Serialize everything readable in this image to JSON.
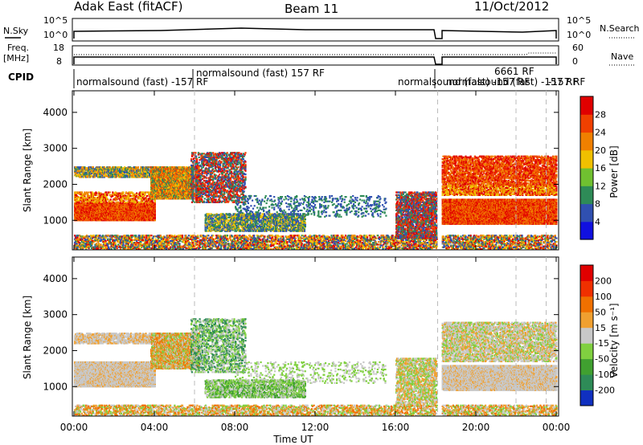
{
  "header": {
    "title_left": "Adak East (fitACF)",
    "title_center": "Beam 11",
    "title_right": "11/Oct/2012"
  },
  "top_panels": {
    "nsky_label": "N.Sky",
    "nsky_ticks": [
      "10^5",
      "10^0"
    ],
    "nsearch_label": "N.Search",
    "nsearch_ticks": [
      "10^5",
      "10^0"
    ],
    "freq_label_1": "Freq.",
    "freq_label_2": "[MHz]",
    "freq_ticks": [
      "18",
      "8"
    ],
    "nave_label": "Nave",
    "nave_ticks": [
      "60",
      "0"
    ],
    "cpid_label": "CPID",
    "cpid_labels": [
      "normalsound (fast) -157 RF",
      "normalsound (fast) 157 RF",
      "normalsound (fast) -157 RF",
      "6661 RF",
      "normalsound (fast) -157 RF",
      "-157 RF"
    ]
  },
  "chart_data": [
    {
      "type": "heatmap",
      "name": "power-panel",
      "ylabel": "Slant Range [km]",
      "yticks": [
        "1000",
        "2000",
        "3000",
        "4000"
      ],
      "ylim": [
        180,
        4600
      ],
      "x_range_hours": [
        0,
        24
      ],
      "colorbar_label": "Power [dB]",
      "colorbar_ticks": [
        "4",
        "8",
        "12",
        "16",
        "20",
        "24",
        "28"
      ],
      "colorbar_colors": [
        "#1010e0",
        "#3050b0",
        "#2e8b57",
        "#70c030",
        "#f0c000",
        "#f08000",
        "#f04000",
        "#e00000"
      ],
      "scatter_bands": [
        {
          "t0": 0.0,
          "t1": 4.0,
          "r0": 1000,
          "r1": 1500,
          "density": 0.92,
          "colors": [
            "#e00000",
            "#f04000",
            "#f08000"
          ]
        },
        {
          "t0": 0.0,
          "t1": 4.0,
          "r0": 2200,
          "r1": 2500,
          "density": 0.55,
          "colors": [
            "#f08000",
            "#2e8b57",
            "#3050b0",
            "#f0c000"
          ]
        },
        {
          "t0": 0.0,
          "t1": 4.0,
          "r0": 1500,
          "r1": 1800,
          "density": 0.35,
          "colors": [
            "#f08000",
            "#f0c000",
            "#e00000"
          ]
        },
        {
          "t0": 0.0,
          "t1": 24.0,
          "r0": 200,
          "r1": 600,
          "density": 0.35,
          "colors": [
            "#e00000",
            "#f08000",
            "#f0c000",
            "#2e8b57",
            "#3050b0"
          ]
        },
        {
          "t0": 3.8,
          "t1": 6.2,
          "r0": 1600,
          "r1": 2500,
          "density": 0.75,
          "colors": [
            "#f04000",
            "#f08000",
            "#f0c000",
            "#2e8b57"
          ]
        },
        {
          "t0": 5.8,
          "t1": 8.5,
          "r0": 1500,
          "r1": 2900,
          "density": 0.32,
          "colors": [
            "#3050b0",
            "#2e8b57",
            "#f04000",
            "#e00000"
          ]
        },
        {
          "t0": 6.5,
          "t1": 11.5,
          "r0": 700,
          "r1": 1200,
          "density": 0.45,
          "colors": [
            "#2e8b57",
            "#3050b0",
            "#f0c000"
          ]
        },
        {
          "t0": 8.0,
          "t1": 15.5,
          "r0": 1100,
          "r1": 1700,
          "density": 0.12,
          "colors": [
            "#3050b0",
            "#2e8b57"
          ]
        },
        {
          "t0": 16.0,
          "t1": 18.0,
          "r0": 500,
          "r1": 1800,
          "density": 0.45,
          "colors": [
            "#3050b0",
            "#f04000",
            "#e00000",
            "#2e8b57"
          ]
        },
        {
          "t0": 18.3,
          "t1": 24.0,
          "r0": 900,
          "r1": 1600,
          "density": 0.9,
          "colors": [
            "#e00000",
            "#f04000",
            "#f08000"
          ]
        },
        {
          "t0": 18.3,
          "t1": 24.0,
          "r0": 1700,
          "r1": 2000,
          "density": 0.45,
          "colors": [
            "#f08000",
            "#f0c000",
            "#e00000"
          ]
        },
        {
          "t0": 18.3,
          "t1": 24.0,
          "r0": 2000,
          "r1": 2800,
          "density": 0.45,
          "colors": [
            "#e00000",
            "#f04000",
            "#f08000"
          ]
        }
      ]
    },
    {
      "type": "heatmap",
      "name": "velocity-panel",
      "ylabel": "Slant Range [km]",
      "yticks": [
        "1000",
        "2000",
        "3000",
        "4000"
      ],
      "ylim": [
        180,
        4600
      ],
      "x_range_hours": [
        0,
        24
      ],
      "colorbar_label": "Velocity [m s⁻¹]",
      "colorbar_ticks": [
        "200",
        "100",
        "50",
        "15",
        "-15",
        "-50",
        "-100",
        "-200"
      ],
      "colorbar_colors": [
        "#1030c0",
        "#2e8b57",
        "#40a030",
        "#80d040",
        "#c8c8c8",
        "#f0a030",
        "#f07000",
        "#f03000",
        "#e00000"
      ],
      "scatter_bands": [
        {
          "t0": 0.0,
          "t1": 4.0,
          "r0": 1000,
          "r1": 1700,
          "density": 0.92,
          "colors": [
            "#c8c8c8",
            "#c8c8c8",
            "#c8c8c8",
            "#f0a030"
          ]
        },
        {
          "t0": 0.0,
          "t1": 4.0,
          "r0": 2200,
          "r1": 2500,
          "density": 0.5,
          "colors": [
            "#c8c8c8",
            "#f0a030",
            "#c8c8c8"
          ]
        },
        {
          "t0": 0.0,
          "t1": 24.0,
          "r0": 200,
          "r1": 500,
          "density": 0.35,
          "colors": [
            "#f0a030",
            "#c8c8c8",
            "#80d040",
            "#f07000"
          ]
        },
        {
          "t0": 3.8,
          "t1": 6.2,
          "r0": 1500,
          "r1": 2500,
          "density": 0.7,
          "colors": [
            "#f0a030",
            "#c8c8c8",
            "#80d040",
            "#f07000"
          ]
        },
        {
          "t0": 5.8,
          "t1": 8.5,
          "r0": 1400,
          "r1": 2900,
          "density": 0.3,
          "colors": [
            "#c8c8c8",
            "#80d040",
            "#2e8b57"
          ]
        },
        {
          "t0": 6.5,
          "t1": 11.5,
          "r0": 700,
          "r1": 1200,
          "density": 0.45,
          "colors": [
            "#80d040",
            "#40a030",
            "#c8c8c8"
          ]
        },
        {
          "t0": 8.0,
          "t1": 15.5,
          "r0": 1100,
          "r1": 1700,
          "density": 0.1,
          "colors": [
            "#c8c8c8",
            "#80d040"
          ]
        },
        {
          "t0": 16.0,
          "t1": 18.0,
          "r0": 500,
          "r1": 1800,
          "density": 0.4,
          "colors": [
            "#c8c8c8",
            "#80d040",
            "#f0a030"
          ]
        },
        {
          "t0": 18.3,
          "t1": 24.0,
          "r0": 900,
          "r1": 1600,
          "density": 0.9,
          "colors": [
            "#c8c8c8",
            "#c8c8c8",
            "#c8c8c8",
            "#f0a030"
          ]
        },
        {
          "t0": 18.3,
          "t1": 24.0,
          "r0": 1700,
          "r1": 2800,
          "density": 0.42,
          "colors": [
            "#c8c8c8",
            "#f0a030",
            "#c8c8c8",
            "#80d040"
          ]
        }
      ]
    }
  ],
  "x_axis": {
    "ticks": [
      "00:00",
      "04:00",
      "08:00",
      "12:00",
      "16:00",
      "20:00",
      "00:00"
    ],
    "tick_hours": [
      0,
      4,
      8,
      12,
      16,
      20,
      24
    ],
    "label": "Time UT"
  },
  "vertical_dashes_hours": [
    6.0,
    18.1,
    22.0,
    23.5
  ]
}
